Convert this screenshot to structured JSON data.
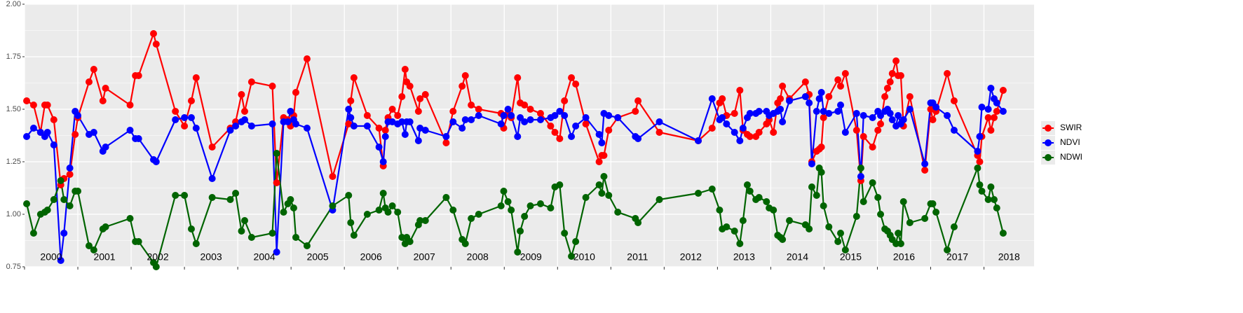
{
  "chart_data": {
    "type": "line",
    "x": [
      2000.04,
      2000.17,
      2000.3,
      2000.38,
      2000.43,
      2000.55,
      2000.68,
      2000.74,
      2000.85,
      2000.95,
      2001.0,
      2001.21,
      2001.3,
      2001.47,
      2001.52,
      2001.98,
      2002.08,
      2002.14,
      2002.42,
      2002.47,
      2002.83,
      2003.0,
      2003.13,
      2003.22,
      2003.52,
      2003.86,
      2003.96,
      2004.07,
      2004.13,
      2004.26,
      2004.65,
      2004.73,
      2004.86,
      2004.94,
      2004.99,
      2005.05,
      2005.09,
      2005.3,
      2005.78,
      2006.08,
      2006.12,
      2006.18,
      2006.43,
      2006.65,
      2006.73,
      2006.77,
      2006.82,
      2006.9,
      2007.0,
      2007.08,
      2007.14,
      2007.17,
      2007.23,
      2007.39,
      2007.42,
      2007.52,
      2007.91,
      2008.04,
      2008.21,
      2008.27,
      2008.38,
      2008.52,
      2008.94,
      2008.99,
      2009.07,
      2009.13,
      2009.25,
      2009.3,
      2009.38,
      2009.49,
      2009.68,
      2009.87,
      2009.95,
      2010.04,
      2010.13,
      2010.26,
      2010.34,
      2010.53,
      2010.78,
      2010.83,
      2010.87,
      2010.96,
      2011.13,
      2011.46,
      2011.51,
      2011.91,
      2012.64,
      2012.9,
      2013.04,
      2013.09,
      2013.17,
      2013.32,
      2013.42,
      2013.48,
      2013.56,
      2013.61,
      2013.72,
      2013.78,
      2013.92,
      2013.97,
      2014.05,
      2014.13,
      2014.18,
      2014.22,
      2014.35,
      2014.65,
      2014.72,
      2014.77,
      2014.86,
      2014.91,
      2014.95,
      2014.99,
      2015.09,
      2015.26,
      2015.31,
      2015.4,
      2015.61,
      2015.69,
      2015.74,
      2015.91,
      2016.01,
      2016.06,
      2016.14,
      2016.19,
      2016.24,
      2016.28,
      2016.35,
      2016.39,
      2016.44,
      2016.49,
      2016.61,
      2016.89,
      2017.0,
      2017.04,
      2017.1,
      2017.31,
      2017.44,
      2017.88,
      2017.92,
      2017.96,
      2018.08,
      2018.13,
      2018.19,
      2018.24,
      2018.36
    ],
    "series": [
      {
        "name": "SWIR",
        "color": "#ff0000",
        "values": [
          1.54,
          1.52,
          1.39,
          1.52,
          1.52,
          1.45,
          1.14,
          1.17,
          1.19,
          1.38,
          1.46,
          1.63,
          1.69,
          1.54,
          1.6,
          1.52,
          1.66,
          1.66,
          1.86,
          1.81,
          1.49,
          1.42,
          1.54,
          1.65,
          1.32,
          1.41,
          1.44,
          1.57,
          1.49,
          1.63,
          1.61,
          1.15,
          1.46,
          1.45,
          1.42,
          1.47,
          1.58,
          1.74,
          1.18,
          1.43,
          1.54,
          1.65,
          1.47,
          1.41,
          1.23,
          1.4,
          1.46,
          1.5,
          1.47,
          1.56,
          1.69,
          1.63,
          1.61,
          1.49,
          1.55,
          1.57,
          1.34,
          1.49,
          1.61,
          1.66,
          1.52,
          1.5,
          1.48,
          1.41,
          1.48,
          1.46,
          1.65,
          1.53,
          1.52,
          1.5,
          1.48,
          1.42,
          1.39,
          1.36,
          1.54,
          1.65,
          1.62,
          1.43,
          1.25,
          1.28,
          1.28,
          1.4,
          1.46,
          1.49,
          1.54,
          1.39,
          1.35,
          1.41,
          1.53,
          1.55,
          1.47,
          1.48,
          1.59,
          1.4,
          1.38,
          1.37,
          1.37,
          1.39,
          1.43,
          1.45,
          1.39,
          1.53,
          1.55,
          1.61,
          1.55,
          1.63,
          1.57,
          1.25,
          1.3,
          1.31,
          1.32,
          1.46,
          1.56,
          1.64,
          1.61,
          1.67,
          1.4,
          1.16,
          1.37,
          1.32,
          1.4,
          1.43,
          1.56,
          1.6,
          1.63,
          1.67,
          1.73,
          1.66,
          1.66,
          1.42,
          1.56,
          1.21,
          1.5,
          1.45,
          1.49,
          1.67,
          1.54,
          1.28,
          1.25,
          1.37,
          1.46,
          1.4,
          1.46,
          1.49,
          1.59
        ]
      },
      {
        "name": "NDVI",
        "color": "#0000ff",
        "values": [
          1.37,
          1.41,
          1.39,
          1.37,
          1.39,
          1.33,
          0.78,
          0.91,
          1.22,
          1.49,
          1.47,
          1.38,
          1.39,
          1.3,
          1.32,
          1.4,
          1.36,
          1.36,
          1.26,
          1.25,
          1.45,
          1.46,
          1.46,
          1.41,
          1.17,
          1.4,
          1.42,
          1.44,
          1.45,
          1.42,
          1.43,
          0.82,
          1.44,
          1.44,
          1.49,
          1.45,
          1.43,
          1.41,
          1.02,
          1.5,
          1.46,
          1.42,
          1.42,
          1.32,
          1.25,
          1.37,
          1.44,
          1.44,
          1.43,
          1.44,
          1.38,
          1.44,
          1.44,
          1.35,
          1.41,
          1.4,
          1.37,
          1.44,
          1.41,
          1.45,
          1.45,
          1.47,
          1.43,
          1.47,
          1.5,
          1.47,
          1.37,
          1.46,
          1.44,
          1.45,
          1.45,
          1.46,
          1.47,
          1.49,
          1.47,
          1.37,
          1.42,
          1.46,
          1.38,
          1.34,
          1.48,
          1.47,
          1.46,
          1.37,
          1.36,
          1.44,
          1.35,
          1.55,
          1.45,
          1.46,
          1.43,
          1.39,
          1.35,
          1.41,
          1.46,
          1.48,
          1.48,
          1.49,
          1.49,
          1.47,
          1.48,
          1.49,
          1.5,
          1.44,
          1.54,
          1.56,
          1.53,
          1.24,
          1.49,
          1.55,
          1.58,
          1.49,
          1.48,
          1.49,
          1.52,
          1.39,
          1.48,
          1.18,
          1.47,
          1.46,
          1.49,
          1.47,
          1.49,
          1.5,
          1.48,
          1.45,
          1.42,
          1.47,
          1.43,
          1.45,
          1.5,
          1.24,
          1.53,
          1.53,
          1.51,
          1.47,
          1.4,
          1.3,
          1.37,
          1.51,
          1.5,
          1.6,
          1.55,
          1.53,
          1.49
        ]
      },
      {
        "name": "NDWI",
        "color": "#006400",
        "values": [
          1.05,
          0.91,
          1.0,
          1.01,
          1.02,
          1.07,
          1.16,
          1.07,
          1.04,
          1.11,
          1.11,
          0.85,
          0.83,
          0.93,
          0.94,
          0.98,
          0.87,
          0.87,
          0.77,
          0.75,
          1.09,
          1.09,
          0.93,
          0.86,
          1.08,
          1.07,
          1.1,
          0.92,
          0.97,
          0.89,
          0.91,
          1.29,
          1.01,
          1.05,
          1.07,
          1.03,
          0.89,
          0.85,
          1.04,
          1.09,
          0.96,
          0.9,
          1.0,
          1.02,
          1.1,
          1.03,
          1.01,
          1.04,
          1.01,
          0.89,
          0.86,
          0.89,
          0.87,
          0.95,
          0.97,
          0.97,
          1.08,
          1.02,
          0.88,
          0.86,
          0.98,
          1.0,
          1.04,
          1.11,
          1.06,
          1.02,
          0.82,
          0.92,
          0.99,
          1.04,
          1.05,
          1.03,
          1.13,
          1.14,
          0.91,
          0.8,
          0.87,
          1.08,
          1.14,
          1.1,
          1.18,
          1.09,
          1.01,
          0.98,
          0.96,
          1.07,
          1.1,
          1.12,
          1.02,
          0.93,
          0.94,
          0.92,
          0.86,
          0.97,
          1.14,
          1.11,
          1.07,
          1.08,
          1.06,
          1.03,
          1.02,
          0.9,
          0.89,
          0.88,
          0.97,
          0.95,
          0.93,
          1.13,
          1.09,
          1.22,
          1.2,
          1.04,
          0.94,
          0.87,
          0.91,
          0.83,
          0.99,
          1.22,
          1.06,
          1.15,
          1.08,
          1.0,
          0.93,
          0.92,
          0.9,
          0.88,
          0.86,
          0.91,
          0.86,
          1.06,
          0.96,
          0.98,
          1.05,
          1.05,
          1.01,
          0.83,
          0.94,
          1.22,
          1.14,
          1.11,
          1.07,
          1.13,
          1.07,
          1.03,
          0.91
        ]
      }
    ],
    "xlim": [
      2000,
      2018.94
    ],
    "xticks": [
      {
        "value": 2000,
        "label": "2000"
      },
      {
        "value": 2001,
        "label": "2001"
      },
      {
        "value": 2002,
        "label": "2002"
      },
      {
        "value": 2003,
        "label": "2003"
      },
      {
        "value": 2004,
        "label": "2004"
      },
      {
        "value": 2005,
        "label": "2005"
      },
      {
        "value": 2006,
        "label": "2006"
      },
      {
        "value": 2007,
        "label": "2007"
      },
      {
        "value": 2008,
        "label": "2008"
      },
      {
        "value": 2009,
        "label": "2009"
      },
      {
        "value": 2010,
        "label": "2010"
      },
      {
        "value": 2011,
        "label": "2011"
      },
      {
        "value": 2012,
        "label": "2012"
      },
      {
        "value": 2013,
        "label": "2013"
      },
      {
        "value": 2014,
        "label": "2014"
      },
      {
        "value": 2015,
        "label": "2015"
      },
      {
        "value": 2016,
        "label": "2016"
      },
      {
        "value": 2017,
        "label": "2017"
      },
      {
        "value": 2018,
        "label": "2018"
      }
    ],
    "ylim": [
      0.75,
      2.0
    ],
    "yticks": [
      {
        "value": 0.75,
        "label": "0.75"
      },
      {
        "value": 1.0,
        "label": "1.00"
      },
      {
        "value": 1.25,
        "label": "1.25"
      },
      {
        "value": 1.5,
        "label": "1.50"
      },
      {
        "value": 1.75,
        "label": "1.75"
      },
      {
        "value": 2.0,
        "label": "2.00"
      }
    ],
    "grid": true,
    "legend": "right"
  }
}
